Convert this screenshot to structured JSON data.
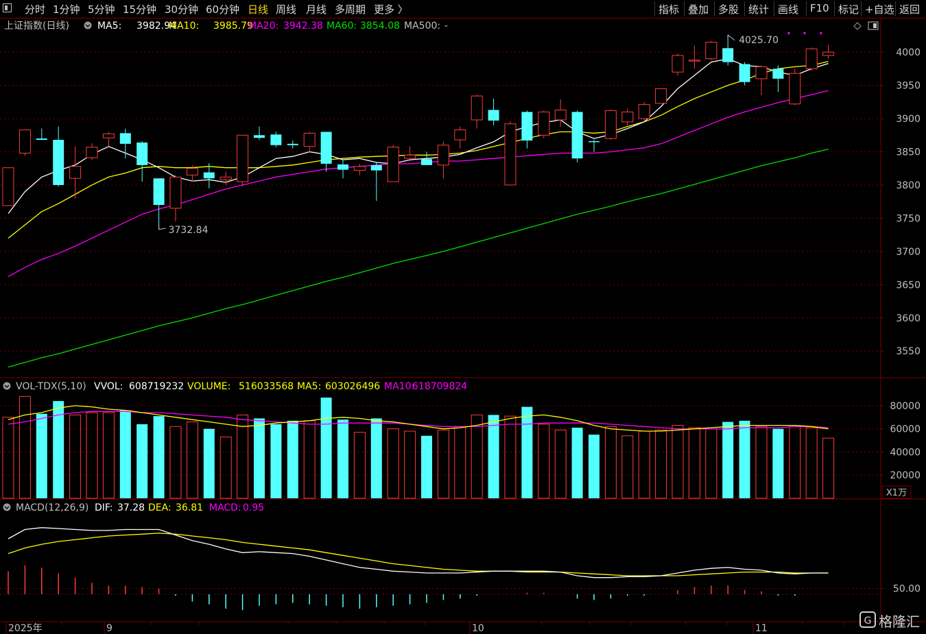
{
  "toolbar": {
    "left": [
      "分时",
      "1分钟",
      "5分钟",
      "15分钟",
      "30分钟",
      "60分钟",
      "日线",
      "周线",
      "月线",
      "多周期",
      "更多 〉"
    ],
    "active": "日线",
    "right": [
      "指标",
      "叠加",
      "多股",
      "统计",
      "画线",
      "F10",
      "标记",
      "+自选",
      "返回"
    ]
  },
  "colors": {
    "up": "#ff3b3b",
    "down": "#54ffff",
    "ma5": "#ffffff",
    "ma10": "#ffff00",
    "ma20": "#ff00ff",
    "ma60": "#00e000",
    "grid": "#7a0000",
    "axis": "#c0c0c0"
  },
  "price_panel": {
    "title": "上证指数(日线)",
    "ma_legend": [
      {
        "label": "MA5:",
        "value": "3982.94",
        "color": "#ffffff"
      },
      {
        "label": "MA10:",
        "value": "3985.79",
        "color": "#ffff00"
      },
      {
        "label": "MA20:",
        "value": "3942.38",
        "color": "#ff00ff"
      },
      {
        "label": "MA60:",
        "value": "3854.08",
        "color": "#00e000"
      },
      {
        "label": "MA500:",
        "value": "-",
        "color": "#c0c0c0"
      }
    ],
    "high_marker": "4025.70",
    "low_marker": "3732.84",
    "yaxis_ticks": [
      "4000",
      "3950",
      "3900",
      "3850",
      "3800",
      "3750",
      "3700",
      "3650",
      "3600",
      "3550"
    ]
  },
  "volume_panel": {
    "legend": [
      {
        "label": "VOL-TDX(5,10)",
        "value": "",
        "color": "#c0c0c0"
      },
      {
        "label": "VVOL:",
        "value": "608719232",
        "color": "#ffffff"
      },
      {
        "label": "VOLUME:",
        "value": "516033568",
        "color": "#ffff00"
      },
      {
        "label": "MA5:",
        "value": "603026496",
        "color": "#ffff00"
      },
      {
        "label": "MA10:",
        "value": "618709824",
        "color": "#ff00ff"
      }
    ],
    "yaxis_ticks": [
      "80000",
      "60000",
      "40000",
      "20000"
    ],
    "unit": "X1万"
  },
  "macd_panel": {
    "legend": [
      {
        "label": "MACD(12,26,9)",
        "value": "",
        "color": "#c0c0c0"
      },
      {
        "label": "DIF:",
        "value": "37.28",
        "color": "#ffffff"
      },
      {
        "label": "DEA:",
        "value": "36.81",
        "color": "#ffff00"
      },
      {
        "label": "MACD:",
        "value": "0.95",
        "color": "#ff00ff"
      }
    ],
    "yaxis_ticks": [
      "50.00"
    ]
  },
  "date_axis": [
    "2025年",
    "9",
    "10",
    "11"
  ],
  "watermark": "格隆汇",
  "chart_data": {
    "type": "candlestick",
    "candles": [
      {
        "o": 3769,
        "c": 3826,
        "h": 3826,
        "l": 3769
      },
      {
        "o": 3848,
        "c": 3883,
        "h": 3883,
        "l": 3844
      },
      {
        "o": 3870,
        "c": 3868,
        "h": 3885,
        "l": 3868
      },
      {
        "o": 3868,
        "c": 3800,
        "h": 3888,
        "l": 3798
      },
      {
        "o": 3810,
        "c": 3828,
        "h": 3858,
        "l": 3780
      },
      {
        "o": 3841,
        "c": 3857,
        "h": 3863,
        "l": 3838
      },
      {
        "o": 3871,
        "c": 3877,
        "h": 3880,
        "l": 3858
      },
      {
        "o": 3878,
        "c": 3862,
        "h": 3885,
        "l": 3840
      },
      {
        "o": 3864,
        "c": 3830,
        "h": 3866,
        "l": 3805
      },
      {
        "o": 3810,
        "c": 3770,
        "h": 3810,
        "l": 3733
      },
      {
        "o": 3765,
        "c": 3812,
        "h": 3815,
        "l": 3745
      },
      {
        "o": 3815,
        "c": 3825,
        "h": 3830,
        "l": 3805
      },
      {
        "o": 3819,
        "c": 3810,
        "h": 3833,
        "l": 3795
      },
      {
        "o": 3808,
        "c": 3812,
        "h": 3820,
        "l": 3800
      },
      {
        "o": 3805,
        "c": 3875,
        "h": 3875,
        "l": 3798
      },
      {
        "o": 3875,
        "c": 3871,
        "h": 3888,
        "l": 3868
      },
      {
        "o": 3876,
        "c": 3860,
        "h": 3880,
        "l": 3857
      },
      {
        "o": 3862,
        "c": 3860,
        "h": 3867,
        "l": 3855
      },
      {
        "o": 3858,
        "c": 3878,
        "h": 3880,
        "l": 3850
      },
      {
        "o": 3880,
        "c": 3832,
        "h": 3880,
        "l": 3820
      },
      {
        "o": 3831,
        "c": 3823,
        "h": 3837,
        "l": 3810
      },
      {
        "o": 3822,
        "c": 3828,
        "h": 3832,
        "l": 3815
      },
      {
        "o": 3830,
        "c": 3822,
        "h": 3835,
        "l": 3776
      },
      {
        "o": 3805,
        "c": 3857,
        "h": 3860,
        "l": 3805
      },
      {
        "o": 3840,
        "c": 3845,
        "h": 3858,
        "l": 3836
      },
      {
        "o": 3839,
        "c": 3830,
        "h": 3850,
        "l": 3830
      },
      {
        "o": 3830,
        "c": 3860,
        "h": 3865,
        "l": 3810
      },
      {
        "o": 3868,
        "c": 3883,
        "h": 3888,
        "l": 3855
      },
      {
        "o": 3898,
        "c": 3934,
        "h": 3936,
        "l": 3885
      },
      {
        "o": 3913,
        "c": 3897,
        "h": 3930,
        "l": 3890
      },
      {
        "o": 3800,
        "c": 3892,
        "h": 3896,
        "l": 3800
      },
      {
        "o": 3910,
        "c": 3867,
        "h": 3912,
        "l": 3855
      },
      {
        "o": 3875,
        "c": 3910,
        "h": 3912,
        "l": 3870
      },
      {
        "o": 3898,
        "c": 3913,
        "h": 3929,
        "l": 3888
      },
      {
        "o": 3910,
        "c": 3840,
        "h": 3912,
        "l": 3834
      },
      {
        "o": 3866,
        "c": 3865,
        "h": 3868,
        "l": 3850
      },
      {
        "o": 3870,
        "c": 3912,
        "h": 3914,
        "l": 3868
      },
      {
        "o": 3895,
        "c": 3910,
        "h": 3915,
        "l": 3890
      },
      {
        "o": 3900,
        "c": 3921,
        "h": 3925,
        "l": 3897
      },
      {
        "o": 3923,
        "c": 3945,
        "h": 3946,
        "l": 3922
      },
      {
        "o": 3970,
        "c": 3995,
        "h": 3998,
        "l": 3965
      },
      {
        "o": 3988,
        "c": 3988,
        "h": 4010,
        "l": 3975
      },
      {
        "o": 3990,
        "c": 4015,
        "h": 4017,
        "l": 3988
      },
      {
        "o": 4006,
        "c": 3985,
        "h": 4026,
        "l": 3980
      },
      {
        "o": 3982,
        "c": 3955,
        "h": 3985,
        "l": 3950
      },
      {
        "o": 3960,
        "c": 3978,
        "h": 3980,
        "l": 3935
      },
      {
        "o": 3975,
        "c": 3960,
        "h": 3980,
        "l": 3940
      },
      {
        "o": 3922,
        "c": 3968,
        "h": 3975,
        "l": 3920
      },
      {
        "o": 3975,
        "c": 4005,
        "h": 4007,
        "l": 3972
      },
      {
        "o": 3995,
        "c": 4000,
        "h": 4011,
        "l": 3990
      }
    ],
    "ma5": [
      3757,
      3790,
      3812,
      3822,
      3830,
      3846,
      3858,
      3848,
      3838,
      3826,
      3812,
      3806,
      3808,
      3804,
      3812,
      3826,
      3840,
      3843,
      3850,
      3846,
      3838,
      3840,
      3834,
      3832,
      3838,
      3840,
      3842,
      3846,
      3856,
      3865,
      3880,
      3888,
      3894,
      3898,
      3880,
      3870,
      3876,
      3885,
      3895,
      3918,
      3945,
      3965,
      3985,
      3990,
      3980,
      3978,
      3970,
      3965,
      3975,
      3983
    ],
    "ma10": [
      3720,
      3740,
      3760,
      3772,
      3786,
      3800,
      3812,
      3818,
      3826,
      3828,
      3826,
      3826,
      3828,
      3826,
      3826,
      3826,
      3828,
      3830,
      3834,
      3838,
      3840,
      3842,
      3843,
      3844,
      3845,
      3845,
      3846,
      3848,
      3852,
      3858,
      3864,
      3870,
      3876,
      3880,
      3880,
      3878,
      3880,
      3888,
      3895,
      3905,
      3918,
      3930,
      3940,
      3950,
      3958,
      3968,
      3975,
      3978,
      3980,
      3986
    ],
    "ma20": [
      3662,
      3676,
      3688,
      3697,
      3708,
      3720,
      3732,
      3744,
      3756,
      3764,
      3770,
      3778,
      3786,
      3794,
      3800,
      3806,
      3812,
      3816,
      3820,
      3824,
      3826,
      3828,
      3830,
      3832,
      3832,
      3834,
      3836,
      3836,
      3838,
      3840,
      3842,
      3844,
      3846,
      3848,
      3848,
      3848,
      3850,
      3853,
      3856,
      3862,
      3872,
      3882,
      3892,
      3902,
      3910,
      3917,
      3924,
      3930,
      3936,
      3942
    ],
    "ma60": [
      3526,
      3533,
      3540,
      3546,
      3553,
      3560,
      3567,
      3574,
      3581,
      3588,
      3594,
      3600,
      3607,
      3614,
      3620,
      3627,
      3634,
      3641,
      3648,
      3655,
      3661,
      3668,
      3675,
      3682,
      3688,
      3694,
      3700,
      3707,
      3714,
      3721,
      3728,
      3735,
      3742,
      3749,
      3756,
      3762,
      3768,
      3775,
      3781,
      3787,
      3794,
      3801,
      3808,
      3815,
      3822,
      3829,
      3835,
      3841,
      3848,
      3854
    ],
    "volume": [
      {
        "v": 70000,
        "up": true
      },
      {
        "v": 88000,
        "up": true
      },
      {
        "v": 73000,
        "up": false
      },
      {
        "v": 84000,
        "up": false
      },
      {
        "v": 72000,
        "up": true
      },
      {
        "v": 74000,
        "up": true
      },
      {
        "v": 74000,
        "up": true
      },
      {
        "v": 76000,
        "up": false
      },
      {
        "v": 64000,
        "up": false
      },
      {
        "v": 71000,
        "up": false
      },
      {
        "v": 62000,
        "up": true
      },
      {
        "v": 66000,
        "up": true
      },
      {
        "v": 60000,
        "up": false
      },
      {
        "v": 53000,
        "up": true
      },
      {
        "v": 72000,
        "up": true
      },
      {
        "v": 69000,
        "up": false
      },
      {
        "v": 64000,
        "up": false
      },
      {
        "v": 67000,
        "up": false
      },
      {
        "v": 67000,
        "up": true
      },
      {
        "v": 87000,
        "up": false
      },
      {
        "v": 68000,
        "up": false
      },
      {
        "v": 57000,
        "up": true
      },
      {
        "v": 69000,
        "up": false
      },
      {
        "v": 60000,
        "up": true
      },
      {
        "v": 58000,
        "up": true
      },
      {
        "v": 54000,
        "up": false
      },
      {
        "v": 59000,
        "up": true
      },
      {
        "v": 62000,
        "up": true
      },
      {
        "v": 72000,
        "up": true
      },
      {
        "v": 72000,
        "up": false
      },
      {
        "v": 71000,
        "up": true
      },
      {
        "v": 79000,
        "up": false
      },
      {
        "v": 64000,
        "up": true
      },
      {
        "v": 59000,
        "up": true
      },
      {
        "v": 61000,
        "up": false
      },
      {
        "v": 55000,
        "up": false
      },
      {
        "v": 62000,
        "up": true
      },
      {
        "v": 54000,
        "up": true
      },
      {
        "v": 58000,
        "up": true
      },
      {
        "v": 59000,
        "up": true
      },
      {
        "v": 63000,
        "up": true
      },
      {
        "v": 61000,
        "up": true
      },
      {
        "v": 60000,
        "up": true
      },
      {
        "v": 66000,
        "up": false
      },
      {
        "v": 67000,
        "up": false
      },
      {
        "v": 62000,
        "up": true
      },
      {
        "v": 60000,
        "up": false
      },
      {
        "v": 62000,
        "up": true
      },
      {
        "v": 61000,
        "up": true
      },
      {
        "v": 52000,
        "up": true
      }
    ],
    "vol_ma5": [
      68000,
      72000,
      74000,
      78000,
      80000,
      79000,
      77000,
      76000,
      74000,
      72000,
      70000,
      68000,
      66000,
      64000,
      62000,
      63000,
      65000,
      66000,
      67000,
      69000,
      70000,
      69000,
      67000,
      66000,
      64000,
      62000,
      60000,
      61000,
      63000,
      66000,
      69000,
      71000,
      72000,
      70000,
      67000,
      63000,
      60000,
      59000,
      58000,
      58000,
      59000,
      60000,
      61000,
      62000,
      63000,
      63000,
      63000,
      63000,
      62000,
      60000
    ],
    "vol_ma10": [
      64000,
      66000,
      69000,
      72000,
      74000,
      75000,
      75000,
      75000,
      74000,
      74000,
      73000,
      72000,
      71000,
      70000,
      68000,
      67000,
      66000,
      65000,
      64000,
      64000,
      65000,
      65000,
      65000,
      65000,
      64000,
      63000,
      62000,
      62000,
      62000,
      63000,
      64000,
      64000,
      65000,
      65000,
      65000,
      65000,
      64000,
      63000,
      62000,
      61000,
      60000,
      60000,
      60000,
      60000,
      61000,
      61000,
      61000,
      62000,
      62000,
      61000
    ],
    "dif": [
      78,
      88,
      90,
      89,
      88,
      87,
      87,
      88,
      88,
      88,
      82,
      76,
      72,
      67,
      63,
      64,
      63,
      62,
      59,
      55,
      51,
      47,
      45,
      43,
      42,
      41,
      41,
      41,
      42,
      43,
      43,
      43,
      43,
      42,
      38,
      36,
      36,
      37,
      37,
      38,
      41,
      44,
      46,
      47,
      45,
      44,
      41,
      40,
      41,
      41
    ],
    "dea": [
      62,
      68,
      72,
      75,
      77,
      79,
      81,
      82,
      83,
      84,
      83,
      81,
      79,
      77,
      74,
      72,
      70,
      68,
      66,
      63,
      60,
      57,
      54,
      51,
      49,
      47,
      45,
      44,
      43,
      43,
      43,
      42,
      42,
      42,
      41,
      40,
      39,
      38,
      38,
      38,
      38,
      39,
      40,
      41,
      42,
      42,
      42,
      41,
      41,
      41
    ],
    "macd_bar": [
      32,
      40,
      37,
      29,
      23,
      16,
      12,
      12,
      10,
      8,
      -2,
      -10,
      -14,
      -20,
      -22,
      -16,
      -14,
      -12,
      -14,
      -16,
      -18,
      -20,
      -18,
      -16,
      -14,
      -12,
      -8,
      -6,
      -2,
      0,
      0,
      2,
      2,
      0,
      -6,
      -8,
      -6,
      -2,
      -2,
      0,
      6,
      10,
      12,
      12,
      6,
      4,
      -2,
      -2,
      0,
      0
    ]
  }
}
